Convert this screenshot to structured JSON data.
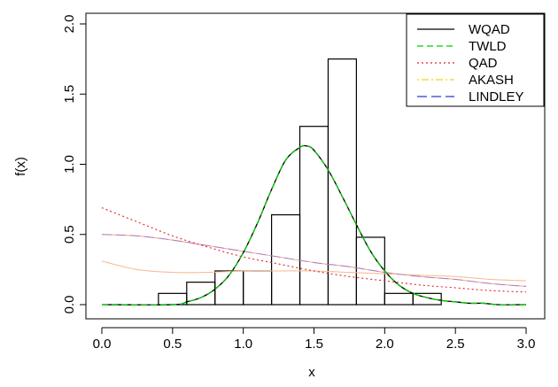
{
  "chart_data": {
    "type": "histogram-with-density-curves",
    "title": "",
    "xlabel": "x",
    "ylabel": "f(x)",
    "xlim": [
      0,
      3
    ],
    "ylim": [
      0,
      2
    ],
    "x_ticks": [
      "0.0",
      "0.5",
      "1.0",
      "1.5",
      "2.0",
      "2.5",
      "3.0"
    ],
    "y_ticks": [
      "0.0",
      "0.5",
      "1.0",
      "1.5",
      "2.0"
    ],
    "grid": false,
    "legend_position": "top-right",
    "histogram": {
      "bin_width": 0.2,
      "bins": [
        {
          "start": 0.4,
          "density": 0.08
        },
        {
          "start": 0.6,
          "density": 0.16
        },
        {
          "start": 0.8,
          "density": 0.24
        },
        {
          "start": 1.0,
          "density": 0.24
        },
        {
          "start": 1.2,
          "density": 0.64
        },
        {
          "start": 1.4,
          "density": 1.27
        },
        {
          "start": 1.6,
          "density": 1.75
        },
        {
          "start": 1.8,
          "density": 0.48
        },
        {
          "start": 2.0,
          "density": 0.08
        },
        {
          "start": 2.2,
          "density": 0.08
        }
      ]
    },
    "series": [
      {
        "name": "WQAD",
        "color": "#000000",
        "dash": "solid",
        "x": [
          0.0,
          0.5,
          0.6,
          0.7,
          0.8,
          0.9,
          1.0,
          1.1,
          1.2,
          1.3,
          1.4,
          1.45,
          1.5,
          1.6,
          1.7,
          1.8,
          1.9,
          2.0,
          2.1,
          2.2,
          2.3,
          2.4,
          2.5,
          2.6,
          2.7,
          2.8,
          3.0
        ],
        "y": [
          0.0,
          0.0,
          0.02,
          0.05,
          0.11,
          0.21,
          0.37,
          0.58,
          0.82,
          1.03,
          1.12,
          1.13,
          1.1,
          0.96,
          0.77,
          0.57,
          0.38,
          0.24,
          0.14,
          0.08,
          0.05,
          0.03,
          0.02,
          0.01,
          0.01,
          0.0,
          0.0
        ]
      },
      {
        "name": "TWLD",
        "color": "#00cc00",
        "dash": "dashed",
        "x": [
          0.0,
          0.5,
          0.6,
          0.7,
          0.8,
          0.9,
          1.0,
          1.1,
          1.2,
          1.3,
          1.4,
          1.45,
          1.5,
          1.6,
          1.7,
          1.8,
          1.9,
          2.0,
          2.1,
          2.2,
          2.3,
          2.4,
          2.5,
          2.6,
          2.7,
          2.8,
          3.0
        ],
        "y": [
          0.0,
          0.0,
          0.02,
          0.05,
          0.11,
          0.21,
          0.37,
          0.58,
          0.82,
          1.03,
          1.12,
          1.13,
          1.1,
          0.96,
          0.77,
          0.57,
          0.38,
          0.24,
          0.14,
          0.08,
          0.05,
          0.03,
          0.02,
          0.01,
          0.01,
          0.0,
          0.0
        ]
      },
      {
        "name": "QAD",
        "color": "#e8202a",
        "dash": "dotted",
        "x": [
          0.0,
          0.25,
          0.5,
          0.75,
          1.0,
          1.25,
          1.5,
          1.75,
          2.0,
          2.25,
          2.5,
          2.75,
          3.0
        ],
        "y": [
          0.69,
          0.59,
          0.49,
          0.41,
          0.34,
          0.29,
          0.24,
          0.2,
          0.17,
          0.14,
          0.12,
          0.1,
          0.09
        ]
      },
      {
        "name": "AKASH",
        "color": "#f2d21e",
        "dash": "dotdash",
        "x": [
          0.0,
          0.25,
          0.5,
          0.75,
          1.0,
          1.25,
          1.5,
          1.75,
          2.0,
          2.25,
          2.5,
          2.75,
          3.0
        ],
        "y": [
          0.31,
          0.25,
          0.23,
          0.23,
          0.24,
          0.24,
          0.24,
          0.23,
          0.22,
          0.21,
          0.2,
          0.18,
          0.17
        ]
      },
      {
        "name": "LINDLEY",
        "color": "#2b3bd6",
        "dash": "longdash",
        "x": [
          0.0,
          0.25,
          0.5,
          0.75,
          1.0,
          1.25,
          1.5,
          1.75,
          2.0,
          2.25,
          2.5,
          2.75,
          3.0
        ],
        "y": [
          0.5,
          0.49,
          0.46,
          0.42,
          0.38,
          0.34,
          0.3,
          0.27,
          0.23,
          0.2,
          0.18,
          0.15,
          0.13
        ]
      }
    ],
    "overlay_curves": [
      {
        "color": "#f4a0a0",
        "x": [
          0.0,
          0.25,
          0.5,
          0.75,
          1.0,
          1.25,
          1.5,
          1.75,
          2.0,
          2.25,
          2.5,
          2.75,
          3.0
        ],
        "y": [
          0.5,
          0.49,
          0.46,
          0.42,
          0.38,
          0.34,
          0.3,
          0.27,
          0.23,
          0.2,
          0.18,
          0.15,
          0.13
        ]
      },
      {
        "color": "#f7b6b6",
        "x": [
          0.0,
          0.25,
          0.5,
          0.75,
          1.0,
          1.25,
          1.5,
          1.75,
          2.0,
          2.25,
          2.5,
          2.75,
          3.0
        ],
        "y": [
          0.31,
          0.25,
          0.23,
          0.23,
          0.24,
          0.24,
          0.24,
          0.23,
          0.22,
          0.21,
          0.2,
          0.18,
          0.17
        ]
      }
    ]
  }
}
